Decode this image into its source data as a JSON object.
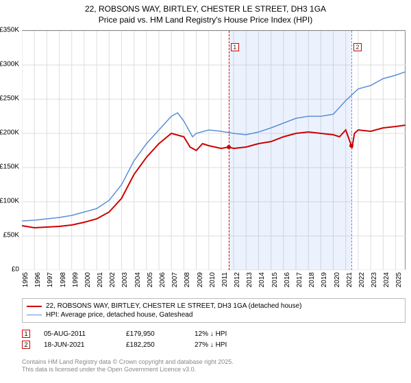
{
  "title_line1": "22, ROBSONS WAY, BIRTLEY, CHESTER LE STREET, DH3 1GA",
  "title_line2": "Price paid vs. HM Land Registry's House Price Index (HPI)",
  "chart": {
    "type": "line",
    "ylim": [
      0,
      350000
    ],
    "ytick_step": 50000,
    "y_labels": [
      "£0",
      "£50K",
      "£100K",
      "£150K",
      "£200K",
      "£250K",
      "£300K",
      "£350K"
    ],
    "x_years": [
      1995,
      1996,
      1997,
      1998,
      1999,
      2000,
      2001,
      2002,
      2003,
      2004,
      2005,
      2006,
      2007,
      2008,
      2009,
      2010,
      2011,
      2012,
      2013,
      2014,
      2015,
      2016,
      2017,
      2018,
      2019,
      2020,
      2021,
      2022,
      2023,
      2024,
      2025
    ],
    "x_min": 1995,
    "x_max": 2025.8,
    "shaded_region": {
      "start": 2011.6,
      "end": 2021.45,
      "color": "rgba(100,150,240,0.12)"
    },
    "background_color": "#ffffff",
    "grid_color": "#dddddd",
    "series": [
      {
        "name": "price_paid",
        "color": "#cc0000",
        "width": 2,
        "label": "22, ROBSONS WAY, BIRTLEY, CHESTER LE STREET, DH3 1GA (detached house)",
        "points": [
          [
            1995,
            65000
          ],
          [
            1996,
            62000
          ],
          [
            1997,
            63000
          ],
          [
            1998,
            64000
          ],
          [
            1999,
            66000
          ],
          [
            2000,
            70000
          ],
          [
            2001,
            75000
          ],
          [
            2002,
            85000
          ],
          [
            2003,
            105000
          ],
          [
            2004,
            140000
          ],
          [
            2005,
            165000
          ],
          [
            2006,
            185000
          ],
          [
            2007,
            200000
          ],
          [
            2008,
            195000
          ],
          [
            2008.5,
            180000
          ],
          [
            2009,
            175000
          ],
          [
            2009.5,
            185000
          ],
          [
            2010,
            182000
          ],
          [
            2010.5,
            180000
          ],
          [
            2011,
            178000
          ],
          [
            2011.6,
            179950
          ],
          [
            2012,
            178000
          ],
          [
            2013,
            180000
          ],
          [
            2014,
            185000
          ],
          [
            2015,
            188000
          ],
          [
            2016,
            195000
          ],
          [
            2017,
            200000
          ],
          [
            2018,
            202000
          ],
          [
            2019,
            200000
          ],
          [
            2020,
            198000
          ],
          [
            2020.5,
            195000
          ],
          [
            2021,
            205000
          ],
          [
            2021.45,
            182250
          ],
          [
            2021.5,
            178000
          ],
          [
            2021.7,
            200000
          ],
          [
            2022,
            205000
          ],
          [
            2023,
            203000
          ],
          [
            2024,
            208000
          ],
          [
            2025,
            210000
          ],
          [
            2025.8,
            212000
          ]
        ]
      },
      {
        "name": "hpi",
        "color": "#5a8fd6",
        "width": 1.5,
        "label": "HPI: Average price, detached house, Gateshead",
        "points": [
          [
            1995,
            72000
          ],
          [
            1996,
            73000
          ],
          [
            1997,
            75000
          ],
          [
            1998,
            77000
          ],
          [
            1999,
            80000
          ],
          [
            2000,
            85000
          ],
          [
            2001,
            90000
          ],
          [
            2002,
            102000
          ],
          [
            2003,
            125000
          ],
          [
            2004,
            160000
          ],
          [
            2005,
            185000
          ],
          [
            2006,
            205000
          ],
          [
            2007,
            225000
          ],
          [
            2007.5,
            230000
          ],
          [
            2008,
            218000
          ],
          [
            2008.7,
            195000
          ],
          [
            2009,
            200000
          ],
          [
            2010,
            205000
          ],
          [
            2011,
            203000
          ],
          [
            2012,
            200000
          ],
          [
            2013,
            198000
          ],
          [
            2014,
            202000
          ],
          [
            2015,
            208000
          ],
          [
            2016,
            215000
          ],
          [
            2017,
            222000
          ],
          [
            2018,
            225000
          ],
          [
            2019,
            225000
          ],
          [
            2020,
            228000
          ],
          [
            2021,
            248000
          ],
          [
            2022,
            265000
          ],
          [
            2023,
            270000
          ],
          [
            2024,
            280000
          ],
          [
            2025,
            285000
          ],
          [
            2025.8,
            290000
          ]
        ]
      }
    ],
    "markers": [
      {
        "n": "1",
        "x": 2011.6,
        "line_color": "#cc0000",
        "dot_y": 179950,
        "dot_color": "#cc0000"
      },
      {
        "n": "2",
        "x": 2021.45,
        "line_color": "#5a8fd6",
        "dot_y": 182250,
        "dot_color": "#cc0000"
      }
    ]
  },
  "legend": [
    {
      "color": "#cc0000",
      "width": 2,
      "text": "22, ROBSONS WAY, BIRTLEY, CHESTER LE STREET, DH3 1GA (detached house)"
    },
    {
      "color": "#5a8fd6",
      "width": 1.5,
      "text": "HPI: Average price, detached house, Gateshead"
    }
  ],
  "events": [
    {
      "n": "1",
      "date": "05-AUG-2011",
      "price": "£179,950",
      "delta": "12% ↓ HPI"
    },
    {
      "n": "2",
      "date": "18-JUN-2021",
      "price": "£182,250",
      "delta": "27% ↓ HPI"
    }
  ],
  "footer_line1": "Contains HM Land Registry data © Crown copyright and database right 2025.",
  "footer_line2": "This data is licensed under the Open Government Licence v3.0."
}
